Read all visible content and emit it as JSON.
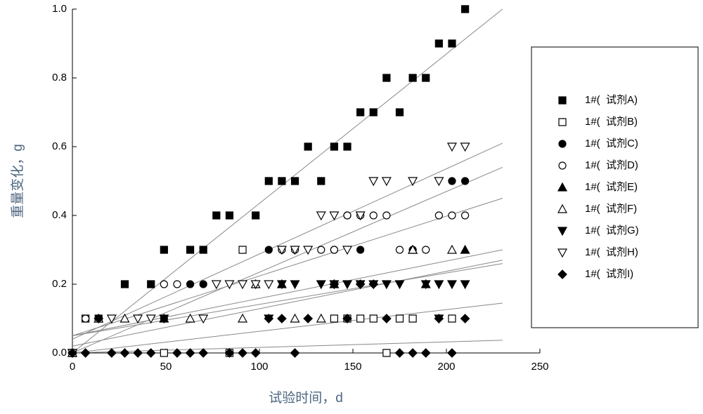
{
  "chart_data": {
    "type": "scatter",
    "x_label": "试验时间，d",
    "y_label": "重量变化，g",
    "xlim": [
      0,
      250
    ],
    "xticks": [
      0,
      50,
      100,
      150,
      200,
      250
    ],
    "ylim": [
      0,
      1.0
    ],
    "yticks": [
      {
        "value": 0,
        "label": "0.0"
      },
      {
        "value": 0.2,
        "label": "0.2"
      },
      {
        "value": 0.4,
        "label": "0.4"
      },
      {
        "value": 0.6,
        "label": "0.6"
      },
      {
        "value": 0.8,
        "label": "0.8"
      },
      {
        "value": 1.0,
        "label": "1.0"
      }
    ],
    "fit_x": [
      0,
      230
    ],
    "series": [
      {
        "name": "1#(  试剂A)",
        "marker": "square",
        "color": "#000000",
        "fit_y": [
          0.0,
          1.0
        ],
        "x": [
          0,
          14,
          28,
          42,
          49,
          63,
          70,
          77,
          84,
          98,
          105,
          112,
          119,
          126,
          133,
          140,
          147,
          154,
          161,
          168,
          175,
          182,
          189,
          196,
          203,
          210
        ],
        "values": [
          0,
          0.1,
          0.2,
          0.2,
          0.3,
          0.3,
          0.3,
          0.4,
          0.4,
          0.4,
          0.5,
          0.5,
          0.5,
          0.6,
          0.5,
          0.6,
          0.6,
          0.7,
          0.7,
          0.8,
          0.7,
          0.8,
          0.8,
          0.9,
          0.9,
          1.0
        ]
      },
      {
        "name": "1#(  试剂B)",
        "marker": "square-open",
        "color": "#000000",
        "fit_y": [
          0.0,
          0.037
        ],
        "x": [
          0,
          7,
          49,
          84,
          91,
          140,
          147,
          154,
          161,
          168,
          175,
          182,
          203
        ],
        "values": [
          0,
          0.1,
          0,
          0,
          0.3,
          0.1,
          0.1,
          0.1,
          0.1,
          0,
          0.1,
          0.1,
          0.1
        ]
      },
      {
        "name": "1#(  试剂C)",
        "marker": "circle",
        "color": "#000000",
        "fit_y": [
          0.0,
          0.54
        ],
        "x": [
          0,
          14,
          49,
          63,
          70,
          105,
          140,
          147,
          154,
          182,
          203,
          210
        ],
        "values": [
          0,
          0.1,
          0.1,
          0.2,
          0.2,
          0.3,
          0.3,
          0.4,
          0.3,
          0.3,
          0.5,
          0.5
        ]
      },
      {
        "name": "1#(  试剂D)",
        "marker": "circle-open",
        "color": "#000000",
        "fit_y": [
          0.05,
          0.45
        ],
        "x": [
          0,
          7,
          49,
          56,
          112,
          119,
          133,
          140,
          147,
          154,
          161,
          168,
          175,
          189,
          196,
          203,
          210
        ],
        "values": [
          0,
          0.1,
          0.2,
          0.2,
          0.3,
          0.3,
          0.3,
          0.3,
          0.4,
          0.4,
          0.4,
          0.4,
          0.3,
          0.3,
          0.4,
          0.4,
          0.4
        ]
      },
      {
        "name": "1#(  试剂E)",
        "marker": "triangle",
        "color": "#000000",
        "fit_y": [
          0.02,
          0.27
        ],
        "x": [
          0,
          49,
          112,
          140,
          182,
          189,
          210
        ],
        "values": [
          0,
          0.1,
          0.2,
          0.2,
          0.3,
          0.2,
          0.3
        ]
      },
      {
        "name": "1#(  试剂F)",
        "marker": "triangle-open",
        "color": "#000000",
        "fit_y": [
          0.05,
          0.26
        ],
        "x": [
          0,
          14,
          28,
          63,
          91,
          98,
          119,
          133,
          182,
          203
        ],
        "values": [
          0,
          0.1,
          0.1,
          0.1,
          0.1,
          0.2,
          0.1,
          0.1,
          0.3,
          0.3
        ]
      },
      {
        "name": "1#(  试剂G)",
        "marker": "triangle-down",
        "color": "#000000",
        "fit_y": [
          0.05,
          0.3
        ],
        "x": [
          0,
          49,
          105,
          112,
          119,
          133,
          140,
          147,
          154,
          161,
          168,
          175,
          189,
          196,
          196,
          203,
          210
        ],
        "values": [
          0,
          0.1,
          0.1,
          0.2,
          0.2,
          0.2,
          0.2,
          0.2,
          0.2,
          0.2,
          0.2,
          0.2,
          0.2,
          0.2,
          0.1,
          0.2,
          0.2
        ]
      },
      {
        "name": "1#(  试剂H)",
        "marker": "triangle-down-open",
        "color": "#000000",
        "fit_y": [
          0.04,
          0.61
        ],
        "x": [
          0,
          21,
          35,
          42,
          70,
          77,
          84,
          91,
          98,
          105,
          112,
          119,
          126,
          133,
          140,
          147,
          154,
          161,
          168,
          182,
          196,
          203,
          210
        ],
        "values": [
          0,
          0.1,
          0.1,
          0.1,
          0.1,
          0.2,
          0.2,
          0.2,
          0.2,
          0.2,
          0.3,
          0.3,
          0.3,
          0.4,
          0.4,
          0.3,
          0.4,
          0.5,
          0.5,
          0.5,
          0.5,
          0.6,
          0.6
        ]
      },
      {
        "name": "1#(  试剂I)",
        "marker": "diamond",
        "color": "#000000",
        "fit_y": [
          0.0,
          0.145
        ],
        "x": [
          0,
          7,
          14,
          21,
          28,
          35,
          42,
          56,
          63,
          70,
          84,
          91,
          98,
          105,
          112,
          119,
          126,
          140,
          147,
          154,
          161,
          168,
          175,
          182,
          189,
          196,
          203,
          210
        ],
        "values": [
          0,
          0,
          0.1,
          0,
          0,
          0,
          0,
          0,
          0,
          0,
          0,
          0,
          0,
          0.1,
          0.1,
          0,
          0.1,
          0.2,
          0.1,
          0.2,
          0.2,
          0.1,
          0,
          0,
          0,
          0.1,
          0,
          0.1
        ]
      }
    ]
  }
}
